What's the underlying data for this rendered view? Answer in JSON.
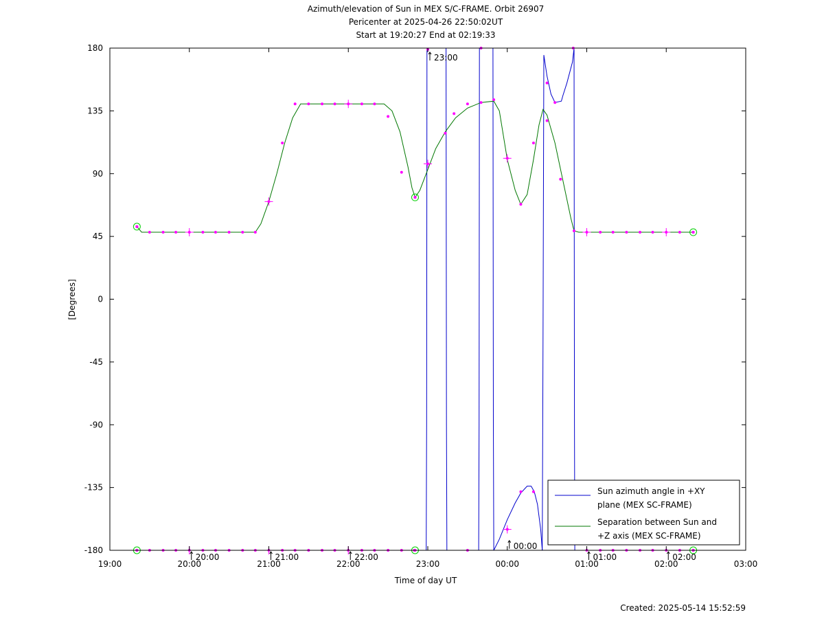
{
  "title_lines": [
    "Azimuth/elevation of Sun in MEX S/C-FRAME.  Orbit 26907",
    "Pericenter at 2025-04-26 22:50:02UT",
    "Start at 19:20:27 End at 02:19:33"
  ],
  "footer": "Created: 2025-05-14 15:52:59",
  "chart_data": {
    "type": "line",
    "xlabel": "Time of day UT",
    "ylabel": "[Degrees]",
    "xlim": [
      19.0,
      27.0
    ],
    "ylim": [
      -180,
      180
    ],
    "x_ticks": [
      {
        "v": 19,
        "label": "19:00"
      },
      {
        "v": 20,
        "label": "20:00"
      },
      {
        "v": 21,
        "label": "21:00"
      },
      {
        "v": 22,
        "label": "22:00"
      },
      {
        "v": 23,
        "label": "23:00"
      },
      {
        "v": 24,
        "label": "00:00"
      },
      {
        "v": 25,
        "label": "01:00"
      },
      {
        "v": 26,
        "label": "02:00"
      },
      {
        "v": 27,
        "label": "03:00"
      }
    ],
    "y_ticks": [
      {
        "v": 180,
        "label": "180"
      },
      {
        "v": 135,
        "label": "135"
      },
      {
        "v": 90,
        "label": "90"
      },
      {
        "v": 45,
        "label": "45"
      },
      {
        "v": 0,
        "label": "0"
      },
      {
        "v": -45,
        "label": "-45"
      },
      {
        "v": -90,
        "label": "-90"
      },
      {
        "v": -135,
        "label": "-135"
      },
      {
        "v": -180,
        "label": "-180"
      }
    ],
    "hour_markers": [
      {
        "v": 20,
        "label": "20:00",
        "y": -180
      },
      {
        "v": 21,
        "label": "21:00",
        "y": -180
      },
      {
        "v": 22,
        "label": "22:00",
        "y": -180
      },
      {
        "v": 23,
        "label": "23:00",
        "y": 180
      },
      {
        "v": 24,
        "label": "00:00",
        "y": -172
      },
      {
        "v": 25,
        "label": "01:00",
        "y": -180
      },
      {
        "v": 26,
        "label": "02:00",
        "y": -180
      }
    ],
    "legend": {
      "position": "bottom-right",
      "entries": [
        {
          "lines": [
            "Sun azimuth angle in +XY",
            "plane (MEX SC-FRAME)"
          ],
          "color": "#0000cc"
        },
        {
          "lines": [
            "Separation between Sun and",
            "+Z axis (MEX SC-FRAME)"
          ],
          "color": "#007700"
        }
      ]
    },
    "series": [
      {
        "name": "Sun azimuth angle in +XY plane (MEX SC-FRAME)",
        "color": "#0000cc",
        "segments": [
          [
            [
              19.34,
              -180
            ],
            [
              22.98,
              -180
            ],
            [
              22.985,
              -90
            ],
            [
              22.99,
              180
            ]
          ],
          [
            [
              23.0,
              180
            ],
            [
              23.22,
              180
            ]
          ],
          [
            [
              23.23,
              180
            ],
            [
              23.235,
              -90
            ],
            [
              23.24,
              -180
            ],
            [
              23.63,
              -180
            ]
          ],
          [
            [
              23.64,
              -180
            ],
            [
              23.645,
              -90
            ],
            [
              23.65,
              180
            ],
            [
              23.81,
              180
            ]
          ],
          [
            [
              23.82,
              180
            ],
            [
              23.825,
              -90
            ],
            [
              23.83,
              -180
            ],
            [
              23.9,
              -172
            ],
            [
              24.0,
              -158
            ],
            [
              24.1,
              -146
            ],
            [
              24.17,
              -139
            ],
            [
              24.25,
              -134
            ],
            [
              24.3,
              -134
            ],
            [
              24.34,
              -138
            ],
            [
              24.38,
              -147
            ],
            [
              24.42,
              -165
            ],
            [
              24.44,
              -180
            ]
          ],
          [
            [
              24.44,
              -180
            ],
            [
              24.445,
              -100
            ],
            [
              24.45,
              -30
            ],
            [
              24.46,
              175
            ]
          ],
          [
            [
              24.46,
              175
            ],
            [
              24.5,
              160
            ],
            [
              24.55,
              147
            ],
            [
              24.6,
              141
            ],
            [
              24.68,
              142
            ],
            [
              24.7,
              146
            ],
            [
              24.75,
              155
            ],
            [
              24.82,
              170
            ],
            [
              24.84,
              180
            ]
          ],
          [
            [
              24.84,
              180
            ],
            [
              24.845,
              -90
            ],
            [
              24.85,
              -180
            ],
            [
              26.34,
              -180
            ]
          ]
        ],
        "markers": [
          [
            19.34,
            -180
          ],
          [
            19.5,
            -180
          ],
          [
            19.67,
            -180
          ],
          [
            19.83,
            -180
          ],
          [
            20.0,
            -180
          ],
          [
            20.17,
            -180
          ],
          [
            20.33,
            -180
          ],
          [
            20.5,
            -180
          ],
          [
            20.67,
            -180
          ],
          [
            20.83,
            -180
          ],
          [
            21.0,
            -180
          ],
          [
            21.17,
            -180
          ],
          [
            21.33,
            -180
          ],
          [
            21.5,
            -180
          ],
          [
            21.67,
            -180
          ],
          [
            21.83,
            -180
          ],
          [
            22.0,
            -180
          ],
          [
            22.17,
            -180
          ],
          [
            22.33,
            -180
          ],
          [
            22.5,
            -180
          ],
          [
            22.67,
            -180
          ],
          [
            22.83,
            -180
          ],
          [
            23.0,
            179
          ],
          [
            23.5,
            -180
          ],
          [
            23.67,
            180
          ],
          [
            24.0,
            -165
          ],
          [
            24.17,
            -138
          ],
          [
            24.33,
            -138
          ],
          [
            24.5,
            155
          ],
          [
            24.6,
            141
          ],
          [
            24.83,
            180
          ],
          [
            25.0,
            -180
          ],
          [
            25.17,
            -180
          ],
          [
            25.33,
            -180
          ],
          [
            25.5,
            -180
          ],
          [
            25.67,
            -180
          ],
          [
            25.83,
            -180
          ],
          [
            26.0,
            -180
          ],
          [
            26.17,
            -180
          ],
          [
            26.34,
            -180
          ]
        ],
        "crosses": [
          [
            20.0,
            -180
          ],
          [
            21.0,
            -180
          ],
          [
            22.0,
            -180
          ],
          [
            24.0,
            -165
          ]
        ],
        "circles": [
          [
            19.34,
            -180
          ],
          [
            22.84,
            -180
          ],
          [
            26.34,
            -180
          ]
        ]
      },
      {
        "name": "Separation between Sun and +Z axis (MEX SC-FRAME)",
        "color": "#007700",
        "segments": [
          [
            [
              19.34,
              52
            ],
            [
              19.4,
              48
            ],
            [
              20.83,
              48
            ],
            [
              20.9,
              54
            ],
            [
              21.0,
              70
            ],
            [
              21.1,
              90
            ],
            [
              21.2,
              112
            ],
            [
              21.3,
              130
            ],
            [
              21.4,
              140
            ],
            [
              22.45,
              140
            ],
            [
              22.55,
              135
            ],
            [
              22.65,
              120
            ],
            [
              22.75,
              95
            ],
            [
              22.8,
              80
            ],
            [
              22.84,
              73
            ],
            [
              22.9,
              78
            ],
            [
              23.0,
              93
            ],
            [
              23.1,
              108
            ],
            [
              23.22,
              120
            ],
            [
              23.35,
              130
            ],
            [
              23.5,
              137
            ],
            [
              23.67,
              141
            ],
            [
              23.83,
              142
            ],
            [
              23.9,
              135
            ],
            [
              24.0,
              100
            ],
            [
              24.1,
              78
            ],
            [
              24.17,
              68
            ],
            [
              24.25,
              75
            ],
            [
              24.33,
              100
            ],
            [
              24.4,
              125
            ],
            [
              24.45,
              136
            ],
            [
              24.5,
              132
            ],
            [
              24.6,
              112
            ],
            [
              24.7,
              85
            ],
            [
              24.8,
              58
            ],
            [
              24.84,
              49
            ],
            [
              24.9,
              48
            ],
            [
              26.34,
              48
            ]
          ]
        ],
        "markers": [
          [
            19.34,
            52
          ],
          [
            19.5,
            48
          ],
          [
            19.67,
            48
          ],
          [
            19.83,
            48
          ],
          [
            20.0,
            48
          ],
          [
            20.17,
            48
          ],
          [
            20.33,
            48
          ],
          [
            20.5,
            48
          ],
          [
            20.67,
            48
          ],
          [
            20.83,
            48
          ],
          [
            21.0,
            70
          ],
          [
            21.17,
            112
          ],
          [
            21.33,
            140
          ],
          [
            21.5,
            140
          ],
          [
            21.67,
            140
          ],
          [
            21.83,
            140
          ],
          [
            22.0,
            140
          ],
          [
            22.17,
            140
          ],
          [
            22.33,
            140
          ],
          [
            22.5,
            131
          ],
          [
            22.67,
            91
          ],
          [
            22.84,
            73
          ],
          [
            23.0,
            97
          ],
          [
            23.22,
            119
          ],
          [
            23.33,
            133
          ],
          [
            23.5,
            140
          ],
          [
            23.67,
            141
          ],
          [
            23.83,
            143
          ],
          [
            24.0,
            101
          ],
          [
            24.17,
            68
          ],
          [
            24.33,
            112
          ],
          [
            24.5,
            128
          ],
          [
            24.67,
            86
          ],
          [
            24.84,
            49
          ],
          [
            25.0,
            48
          ],
          [
            25.17,
            48
          ],
          [
            25.33,
            48
          ],
          [
            25.5,
            48
          ],
          [
            25.67,
            48
          ],
          [
            25.83,
            48
          ],
          [
            26.0,
            48
          ],
          [
            26.17,
            48
          ],
          [
            26.34,
            48
          ]
        ],
        "crosses": [
          [
            20.0,
            48
          ],
          [
            21.0,
            70
          ],
          [
            22.0,
            140
          ],
          [
            23.0,
            97
          ],
          [
            24.0,
            101
          ],
          [
            25.0,
            48
          ],
          [
            26.0,
            48
          ]
        ],
        "circles": [
          [
            19.34,
            52
          ],
          [
            22.84,
            73
          ],
          [
            26.34,
            48
          ]
        ]
      }
    ]
  }
}
